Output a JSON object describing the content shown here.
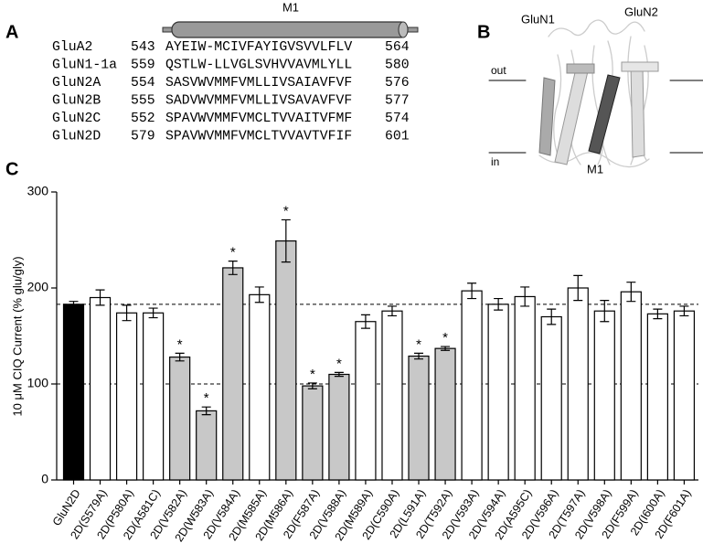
{
  "panel_a": {
    "label": "A",
    "helix_label": "M1",
    "rows": [
      {
        "name": "GluA2",
        "start": "543",
        "sequence": "AYEIW-MCIVFAYIGVSVVLFLV",
        "end": "564"
      },
      {
        "name": "GluN1-1a",
        "start": "559",
        "sequence": "QSTLW-LLVGLSVHVVAVMLYLL",
        "end": "580"
      },
      {
        "name": "GluN2A",
        "start": "554",
        "sequence": "SASVWVMMFVMLLIVSAIAVFVF",
        "end": "576"
      },
      {
        "name": "GluN2B",
        "start": "555",
        "sequence": "SADVWVMMFVMLLIVSAVAVFVF",
        "end": "577"
      },
      {
        "name": "GluN2C",
        "start": "552",
        "sequence": "SPAVWVMMFVMCLTVVAITVFMF",
        "end": "574"
      },
      {
        "name": "GluN2D",
        "start": "579",
        "sequence": "SPAVWVMMFVMCLTVVAVTVFIF",
        "end": "601"
      }
    ]
  },
  "panel_b": {
    "label": "B",
    "subunit_1": "GluN1",
    "subunit_2": "GluN2",
    "out_label": "out",
    "in_label": "in",
    "helix_label": "M1"
  },
  "panel_c": {
    "label": "C"
  },
  "chart_data": {
    "type": "bar",
    "ylabel": "10 μM CIQ Current (% glu/gly)",
    "categories": [
      "GluN2D",
      "2D(S579A)",
      "2D(P580A)",
      "2D(A581C)",
      "2D(V582A)",
      "2D(W583A)",
      "2D(V584A)",
      "2D(M585A)",
      "2D(M586A)",
      "2D(F587A)",
      "2D(V588A)",
      "2D(M589A)",
      "2D(C590A)",
      "2D(L591A)",
      "2D(T592A)",
      "2D(V593A)",
      "2D(V594A)",
      "2D(A595C)",
      "2D(V596A)",
      "2D(T597A)",
      "2D(V598A)",
      "2D(F599A)",
      "2D(I600A)",
      "2D(F601A)"
    ],
    "values": [
      183,
      190,
      174,
      174,
      128,
      72,
      221,
      193,
      249,
      98,
      110,
      165,
      176,
      129,
      137,
      197,
      183,
      191,
      170,
      200,
      176,
      196,
      173,
      176
    ],
    "errors": [
      3,
      8,
      8,
      5,
      4,
      4,
      7,
      8,
      22,
      3,
      2,
      7,
      5,
      3,
      2,
      8,
      6,
      10,
      8,
      13,
      11,
      10,
      5,
      5
    ],
    "colors": [
      "#000000",
      "#ffffff",
      "#ffffff",
      "#ffffff",
      "#c8c8c8",
      "#c8c8c8",
      "#c8c8c8",
      "#ffffff",
      "#c8c8c8",
      "#c8c8c8",
      "#c8c8c8",
      "#ffffff",
      "#ffffff",
      "#c8c8c8",
      "#c8c8c8",
      "#ffffff",
      "#ffffff",
      "#ffffff",
      "#ffffff",
      "#ffffff",
      "#ffffff",
      "#ffffff",
      "#ffffff",
      "#ffffff"
    ],
    "annotations": [
      {
        "category": "2D(V582A)",
        "text": "*"
      },
      {
        "category": "2D(W583A)",
        "text": "*"
      },
      {
        "category": "2D(V584A)",
        "text": "*"
      },
      {
        "category": "2D(M586A)",
        "text": "*"
      },
      {
        "category": "2D(F587A)",
        "text": "*"
      },
      {
        "category": "2D(V588A)",
        "text": "*"
      },
      {
        "category": "2D(L591A)",
        "text": "*"
      },
      {
        "category": "2D(T592A)",
        "text": "*"
      }
    ],
    "reference_lines": [
      183,
      100
    ],
    "ylim": [
      0,
      300
    ],
    "yticks": [
      0,
      100,
      200,
      300
    ]
  }
}
